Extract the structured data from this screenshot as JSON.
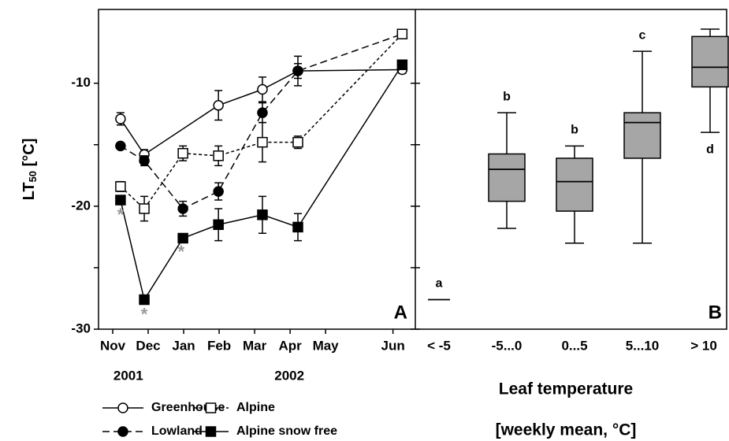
{
  "chart_data": [
    {
      "type": "line",
      "panel_label": "A",
      "ylabel": {
        "main": "LT",
        "sub": "50",
        "unit": " [°C]"
      },
      "xlim": [
        -0.4,
        8.53
      ],
      "ylim": [
        -30,
        -4
      ],
      "xticks": [
        {
          "value": 0,
          "label": "Nov"
        },
        {
          "value": 1,
          "label": "Dec"
        },
        {
          "value": 2,
          "label": "Jan"
        },
        {
          "value": 3,
          "label": "Feb"
        },
        {
          "value": 4,
          "label": "Mar"
        },
        {
          "value": 5,
          "label": "Apr"
        },
        {
          "value": 6,
          "label": "May"
        },
        {
          "value": 7.9,
          "label": "Jun"
        }
      ],
      "yticks": [
        -30,
        -20,
        -10
      ],
      "yticks_minor": [
        -25,
        -15
      ],
      "years": [
        {
          "label": "2001",
          "x": 0.44
        },
        {
          "label": "2002",
          "x": 4.98
        }
      ],
      "series": [
        {
          "name": "Greenhouse",
          "color": "#000000",
          "marker": "circle",
          "filled": false,
          "dash": "solid",
          "x": [
            0.22,
            0.89,
            2.98,
            4.22,
            5.22,
            8.16
          ],
          "values": [
            -12.9,
            -15.8,
            -11.8,
            -10.5,
            -9.0,
            -8.9
          ],
          "errors": [
            0.5,
            0.4,
            1.2,
            1.0,
            0.6,
            0.3
          ]
        },
        {
          "name": "Lowland",
          "color": "#000000",
          "marker": "circle",
          "filled": true,
          "dash": "long",
          "x": [
            0.22,
            0.89,
            1.98,
            2.98,
            4.22,
            5.22,
            8.16
          ],
          "values": [
            -15.1,
            -16.3,
            -20.2,
            -18.8,
            -12.4,
            -9.0,
            -6.0
          ],
          "errors": [
            0,
            0.4,
            0.6,
            0.7,
            0.8,
            1.2,
            0.3
          ]
        },
        {
          "name": "Alpine",
          "color": "#000000",
          "marker": "square",
          "filled": false,
          "dash": "short",
          "x": [
            0.22,
            0.89,
            1.98,
            2.98,
            4.22,
            5.22,
            8.16
          ],
          "values": [
            -18.4,
            -20.2,
            -15.7,
            -15.9,
            -14.8,
            -14.8,
            -6.0
          ],
          "errors": [
            0.4,
            1.0,
            0.6,
            0.8,
            1.6,
            0.5,
            0.3
          ]
        },
        {
          "name": "Alpine snow free",
          "color": "#000000",
          "marker": "square",
          "filled": true,
          "dash": "solid",
          "x": [
            0.22,
            0.89,
            1.98,
            2.98,
            4.22,
            5.22,
            8.16
          ],
          "values": [
            -19.5,
            -27.6,
            -22.6,
            -21.5,
            -20.7,
            -21.7,
            -8.5
          ],
          "errors": [
            0,
            0,
            0,
            1.3,
            1.5,
            1.1,
            0.2
          ]
        }
      ],
      "annotations": [
        {
          "text": "*",
          "x": 0.22,
          "y": -20.8
        },
        {
          "text": "*",
          "x": 0.89,
          "y": -28.9
        },
        {
          "text": "*",
          "x": 1.93,
          "y": -23.8
        }
      ]
    },
    {
      "type": "box",
      "panel_label": "B",
      "xlabel": [
        "Leaf temperature",
        "[weekly mean, °C]"
      ],
      "ylim": [
        -30,
        -4
      ],
      "color": "#a6a6a6",
      "categories": [
        "< -5",
        "-5...0",
        "0...5",
        "5...10",
        "> 10"
      ],
      "boxes": [
        {
          "median": -27.6,
          "group": "a"
        },
        {
          "min": -21.8,
          "q1": -19.6,
          "median": -17.0,
          "q3": -15.75,
          "max": -12.4,
          "group": "b"
        },
        {
          "min": -23.0,
          "q1": -20.4,
          "median": -18.0,
          "q3": -16.1,
          "max": -15.1,
          "group": "b"
        },
        {
          "min": -23.0,
          "q1": -16.1,
          "median": -13.2,
          "q3": -12.4,
          "max": -7.4,
          "group": "c"
        },
        {
          "min": -14.0,
          "q1": -10.3,
          "median": -8.7,
          "q3": -6.2,
          "max": -5.6,
          "group": "d"
        }
      ]
    }
  ]
}
